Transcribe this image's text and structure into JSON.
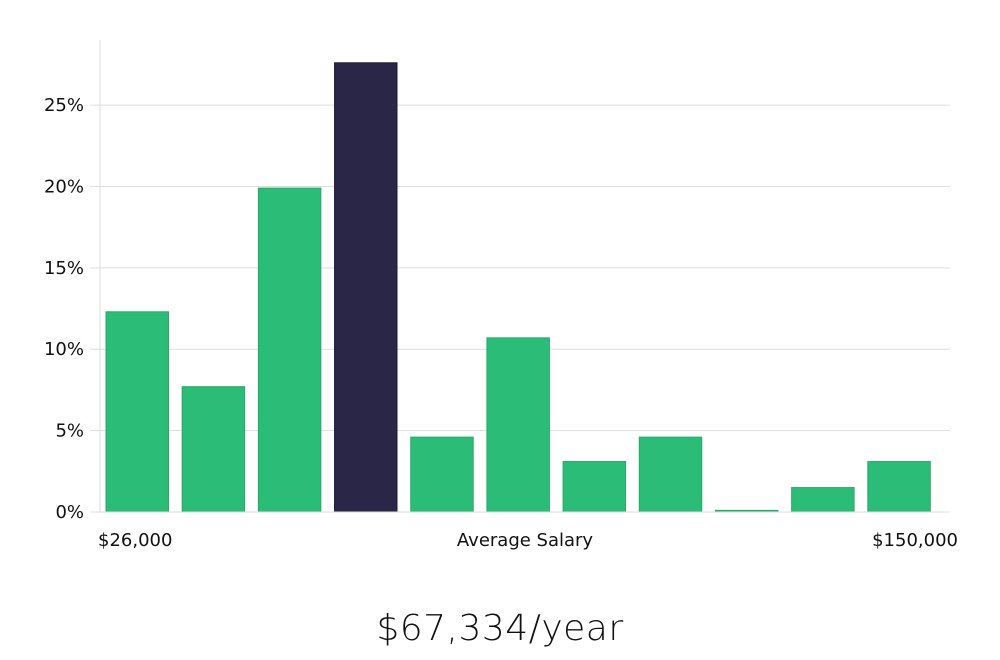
{
  "chart_data": {
    "type": "bar",
    "title": "",
    "ylabel": "",
    "xlabel": "Average Salary",
    "x_min_label": "$26,000",
    "x_max_label": "$150,000",
    "ylim": [
      0,
      29
    ],
    "yticks": [
      0,
      5,
      10,
      15,
      20,
      25
    ],
    "ytick_labels": [
      "0%",
      "5%",
      "10%",
      "15%",
      "20%",
      "25%"
    ],
    "grid": true,
    "values": [
      12.3,
      7.7,
      19.9,
      27.6,
      4.6,
      10.7,
      3.1,
      4.6,
      0.1,
      1.5,
      3.1
    ],
    "highlight_index": 3,
    "colors": {
      "bar": "#2bbd77",
      "highlight": "#2a2647",
      "grid": "#dddddd",
      "axis": "#dddddd"
    }
  },
  "summary": {
    "salary": "$67,334/year"
  }
}
